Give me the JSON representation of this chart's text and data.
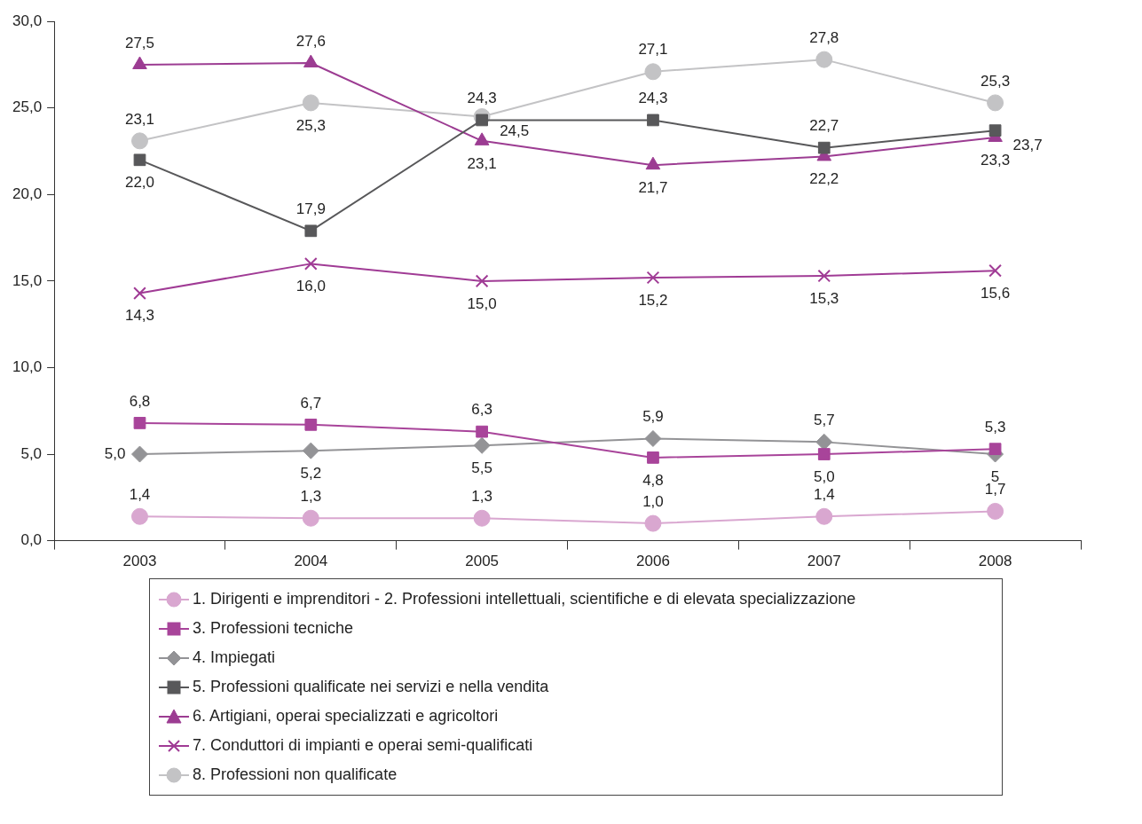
{
  "chart_data": {
    "type": "line",
    "categories": [
      "2003",
      "2004",
      "2005",
      "2006",
      "2007",
      "2008"
    ],
    "ylim": [
      0,
      30
    ],
    "yticks": [
      {
        "value": 0,
        "label": "0,0"
      },
      {
        "value": 5,
        "label": "5,0"
      },
      {
        "value": 10,
        "label": "10,0"
      },
      {
        "value": 15,
        "label": "15,0"
      },
      {
        "value": 20,
        "label": "20,0"
      },
      {
        "value": 25,
        "label": "25,0"
      },
      {
        "value": 30,
        "label": "30,0"
      }
    ],
    "grid": false,
    "legend": "bottom",
    "line_style": "solid",
    "series": [
      {
        "name": "1. Dirigenti e imprenditori - 2. Professioni intellettuali, scientifiche e di elevata specializzazione",
        "color": "#d9a7d0",
        "marker": "circle",
        "values": [
          1.4,
          1.3,
          1.3,
          1.0,
          1.4,
          1.7
        ],
        "value_labels": [
          "1,4",
          "1,3",
          "1,3",
          "1,0",
          "1,4",
          "1,7"
        ]
      },
      {
        "name": "3. Professioni tecniche",
        "color": "#a8449a",
        "marker": "square",
        "values": [
          6.8,
          6.7,
          6.3,
          4.8,
          5.0,
          5.3
        ],
        "value_labels": [
          "6,8",
          "6,7",
          "6,3",
          "4,8",
          "5,0",
          "5,3"
        ]
      },
      {
        "name": "4. Impiegati",
        "color": "#939396",
        "marker": "diamond",
        "values": [
          5.0,
          5.2,
          5.5,
          5.9,
          5.7,
          5
        ],
        "value_labels": [
          "5,0",
          "5,2",
          "5,5",
          "5,9",
          "5,7",
          "5"
        ]
      },
      {
        "name": "5. Professioni qualificate nei servizi e nella vendita",
        "color": "#58585a",
        "marker": "square",
        "values": [
          22.0,
          17.9,
          24.3,
          24.3,
          22.7,
          23.7
        ],
        "value_labels": [
          "22,0",
          "17,9",
          "24,3",
          "24,3",
          "22,7",
          "23,7"
        ]
      },
      {
        "name": "6. Artigiani, operai specializzati e agricoltori",
        "color": "#9c3c92",
        "marker": "triangle",
        "values": [
          27.5,
          27.6,
          23.1,
          21.7,
          22.2,
          23.3
        ],
        "value_labels": [
          "27,5",
          "27,6",
          "23,1",
          "21,7",
          "22,2",
          "23,3"
        ]
      },
      {
        "name": "7. Conduttori di impianti e operai semi-qualificati",
        "color": "#a03b95",
        "marker": "cross",
        "values": [
          14.3,
          16.0,
          15.0,
          15.2,
          15.3,
          15.6
        ],
        "value_labels": [
          "14,3",
          "16,0",
          "15,0",
          "15,2",
          "15,3",
          "15,6"
        ]
      },
      {
        "name": "8. Professioni non qualificate",
        "color": "#c3c3c5",
        "marker": "circle",
        "values": [
          23.1,
          25.3,
          24.5,
          27.1,
          27.8,
          25.3
        ],
        "value_labels": [
          "23,1",
          "25,3",
          "24,5",
          "27,1",
          "27,8",
          "25,3"
        ]
      }
    ]
  }
}
